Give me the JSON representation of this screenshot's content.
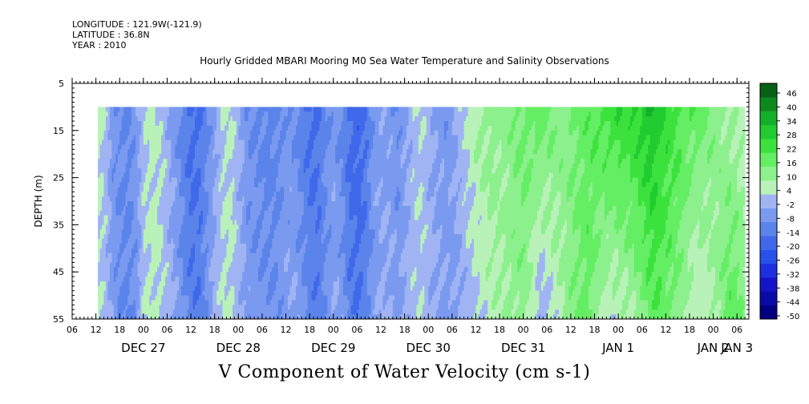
{
  "header": {
    "longitude": "LONGITUDE : 121.9W(-121.9)",
    "latitude": "LATITUDE : 36.8N",
    "year": "YEAR : 2010"
  },
  "chart_data": {
    "type": "heatmap",
    "title": "Hourly Gridded MBARI Mooring M0 Sea Water Temperature and Salinity Observations",
    "caption": "V Component of Water Velocity (cm s-1)",
    "ylabel": "DEPTH (m)",
    "xlabel": "",
    "y_ticks": [
      5,
      15,
      25,
      35,
      45,
      55
    ],
    "ylim": [
      55,
      5
    ],
    "data_depth_range": [
      10,
      55
    ],
    "x_hour_ticks": [
      "06",
      "12",
      "18",
      "00",
      "06",
      "12",
      "18",
      "00",
      "06",
      "12",
      "18",
      "00",
      "06",
      "12",
      "18",
      "00",
      "06",
      "12",
      "18",
      "00",
      "06",
      "12",
      "18",
      "00",
      "06",
      "12",
      "18",
      "00",
      "06"
    ],
    "x_day_labels": [
      "DEC 27",
      "DEC 28",
      "DEC 29",
      "DEC 30",
      "DEC 31",
      "JAN 1",
      "JAN 2",
      "JAN 3"
    ],
    "x_range_hours": [
      0,
      171
    ],
    "data_time_range_hours": [
      6.5,
      170
    ],
    "colorbar": {
      "levels": [
        -50,
        -44,
        -38,
        -32,
        -26,
        -20,
        -14,
        -8,
        -2,
        4,
        10,
        16,
        22,
        28,
        34,
        40,
        46
      ],
      "tick_labels": [
        "46",
        "40",
        "34",
        "28",
        "22",
        "16",
        "10",
        "4",
        "-2",
        "-8",
        "-14",
        "-20",
        "-26",
        "-32",
        "-38",
        "-44",
        "-50"
      ],
      "colors_low_to_high": [
        "#000080",
        "#0a0aa6",
        "#1414c8",
        "#1e2ee0",
        "#2850ea",
        "#4068ea",
        "#5a84ea",
        "#7a9af0",
        "#a0b4f4",
        "#b8f2b8",
        "#8cf08c",
        "#64ee64",
        "#3ce23c",
        "#20cc30",
        "#14b02a",
        "#0c8a1e",
        "#066016"
      ]
    },
    "v_profile": {
      "hours": [
        6.5,
        8,
        10,
        12,
        14,
        16,
        18,
        20,
        22,
        24,
        26,
        28,
        30,
        32,
        34,
        36,
        38,
        40,
        42,
        44,
        46,
        48,
        50,
        52,
        54,
        56,
        58,
        60,
        62,
        64,
        66,
        68,
        70,
        72,
        74,
        76,
        78,
        80,
        82,
        84,
        86,
        88,
        90,
        92,
        94,
        96,
        98,
        100,
        102,
        104,
        106,
        108,
        110,
        112,
        114,
        116,
        118,
        120,
        122,
        124,
        126,
        128,
        130,
        132,
        134,
        136,
        138,
        140,
        142,
        144,
        146,
        148,
        150,
        152,
        154,
        156,
        158,
        160,
        162,
        164,
        166,
        168,
        170
      ],
      "surface": [
        6,
        3,
        -6,
        -8,
        -9,
        -4,
        3,
        6,
        4,
        -1,
        -6,
        -12,
        -16,
        -14,
        -8,
        -2,
        4,
        5,
        -1,
        -7,
        -8,
        -10,
        -11,
        -9,
        -6,
        -8,
        -12,
        -16,
        -14,
        -8,
        -6,
        -10,
        -16,
        -18,
        -14,
        -6,
        -4,
        -5,
        -8,
        -3,
        2,
        4,
        -1,
        -4,
        -6,
        -3,
        2,
        6,
        10,
        12,
        14,
        12,
        13,
        16,
        18,
        18,
        20,
        17,
        15,
        14,
        16,
        18,
        20,
        22,
        23,
        26,
        27,
        26,
        29,
        31,
        34,
        30,
        27,
        24,
        22,
        20,
        18,
        16,
        14,
        12,
        10,
        8,
        6
      ],
      "bottom": [
        4,
        2,
        -4,
        -8,
        -9,
        -6,
        4,
        6,
        5,
        1,
        -3,
        -8,
        -12,
        -12,
        -6,
        1,
        5,
        5,
        1,
        -4,
        -6,
        -6,
        -7,
        -6,
        -3,
        -2,
        -6,
        -10,
        -12,
        -6,
        -2,
        -4,
        -12,
        -14,
        -10,
        -4,
        -1,
        -1,
        -4,
        -1,
        2,
        3,
        0,
        -1,
        -3,
        -4,
        -2,
        1,
        3,
        5,
        7,
        9,
        11,
        12,
        12,
        5,
        -2,
        2,
        6,
        10,
        14,
        16,
        18,
        12,
        8,
        4,
        6,
        8,
        10,
        14,
        18,
        20,
        17,
        14,
        10,
        6,
        4,
        6,
        10,
        14,
        20,
        18,
        14
      ],
      "unit": "cm s-1"
    }
  }
}
